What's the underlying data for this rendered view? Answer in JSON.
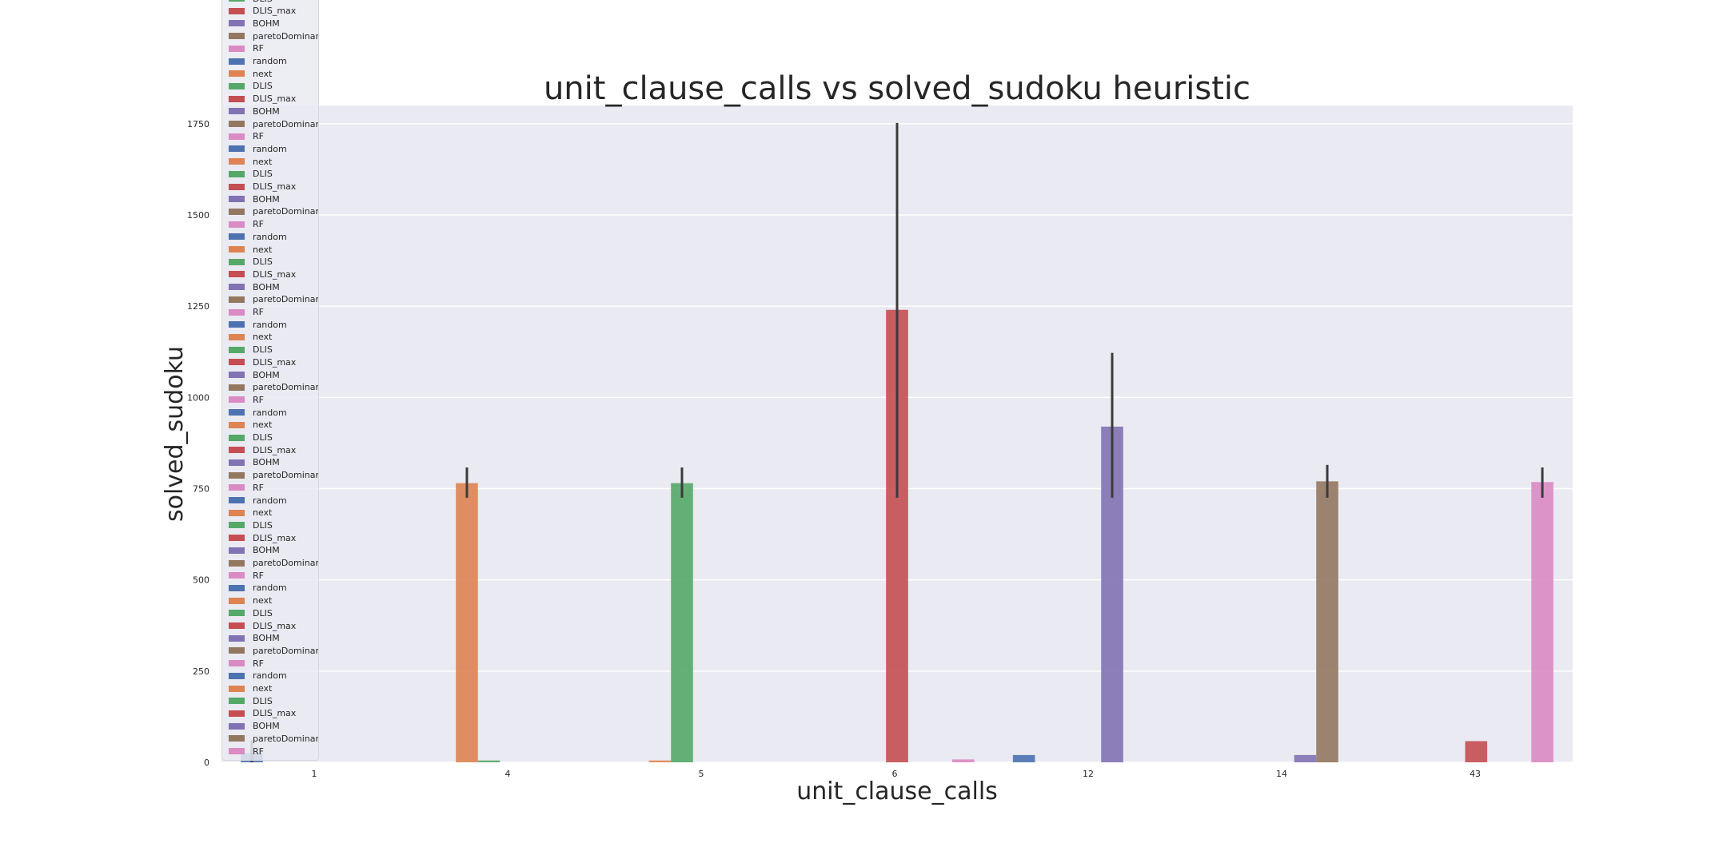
{
  "chart_data": {
    "type": "bar",
    "title": "unit_clause_calls vs solved_sudoku heuristic",
    "xlabel": "unit_clause_calls",
    "ylabel": "solved_sudoku",
    "categories": [
      "1",
      "4",
      "5",
      "6",
      "12",
      "14",
      "43"
    ],
    "ylim": [
      0,
      1800
    ],
    "yticks": [
      0,
      250,
      500,
      750,
      1000,
      1250,
      1500,
      1750
    ],
    "grid": true,
    "legend_position": "upper left",
    "series": [
      {
        "name": "random",
        "color": "#4c72b0",
        "values": [
          25,
          null,
          null,
          null,
          20,
          null,
          null
        ],
        "err": [
          [
            0,
            60
          ],
          null,
          null,
          null,
          null,
          null,
          null
        ]
      },
      {
        "name": "next",
        "color": "#dd8452",
        "values": [
          null,
          765,
          5,
          null,
          null,
          null,
          null
        ],
        "err": [
          null,
          [
            725,
            808
          ],
          null,
          null,
          null,
          null,
          null
        ]
      },
      {
        "name": "DLIS",
        "color": "#55a868",
        "values": [
          null,
          5,
          765,
          null,
          null,
          null,
          null
        ],
        "err": [
          null,
          null,
          [
            725,
            808
          ],
          null,
          null,
          null,
          null
        ]
      },
      {
        "name": "DLIS_max",
        "color": "#c44e52",
        "values": [
          null,
          null,
          null,
          1240,
          null,
          null,
          58
        ],
        "err": [
          null,
          null,
          null,
          [
            725,
            1752
          ],
          null,
          null,
          null
        ]
      },
      {
        "name": "BOHM",
        "color": "#8172b3",
        "values": [
          null,
          null,
          null,
          null,
          920,
          20,
          null
        ],
        "err": [
          null,
          null,
          null,
          null,
          [
            725,
            1122
          ],
          null,
          null
        ]
      },
      {
        "name": "paretoDominant",
        "color": "#937860",
        "values": [
          null,
          null,
          null,
          null,
          null,
          770,
          null
        ],
        "err": [
          null,
          null,
          null,
          null,
          null,
          [
            725,
            815
          ],
          null
        ]
      },
      {
        "name": "RF",
        "color": "#da8bc3",
        "values": [
          null,
          null,
          null,
          8,
          null,
          null,
          768
        ],
        "err": [
          null,
          null,
          null,
          null,
          null,
          null,
          [
            725,
            808
          ]
        ]
      }
    ],
    "legend_entries": [
      "DLIS",
      "DLIS_max",
      "BOHM",
      "paretoDominant",
      "RF",
      "random",
      "next",
      "DLIS",
      "DLIS_max",
      "BOHM",
      "paretoDominant",
      "RF",
      "random",
      "next",
      "DLIS",
      "DLIS_max",
      "BOHM",
      "paretoDominant",
      "RF",
      "random",
      "next",
      "DLIS",
      "DLIS_max",
      "BOHM",
      "paretoDominant",
      "RF",
      "random",
      "next",
      "DLIS",
      "DLIS_max",
      "BOHM",
      "paretoDominant",
      "RF",
      "random",
      "next",
      "DLIS",
      "DLIS_max",
      "BOHM",
      "paretoDominant",
      "RF",
      "random",
      "next",
      "DLIS",
      "DLIS_max",
      "BOHM",
      "paretoDominant",
      "RF",
      "random",
      "next",
      "DLIS",
      "DLIS_max",
      "BOHM",
      "paretoDominant",
      "RF",
      "random",
      "next",
      "DLIS",
      "DLIS_max",
      "BOHM",
      "paretoDominant",
      "RF"
    ],
    "legend_colors": {
      "random": "#4c72b0",
      "next": "#dd8452",
      "DLIS": "#55a868",
      "DLIS_max": "#c44e52",
      "BOHM": "#8172b3",
      "paretoDominant": "#937860",
      "RF": "#da8bc3"
    }
  }
}
